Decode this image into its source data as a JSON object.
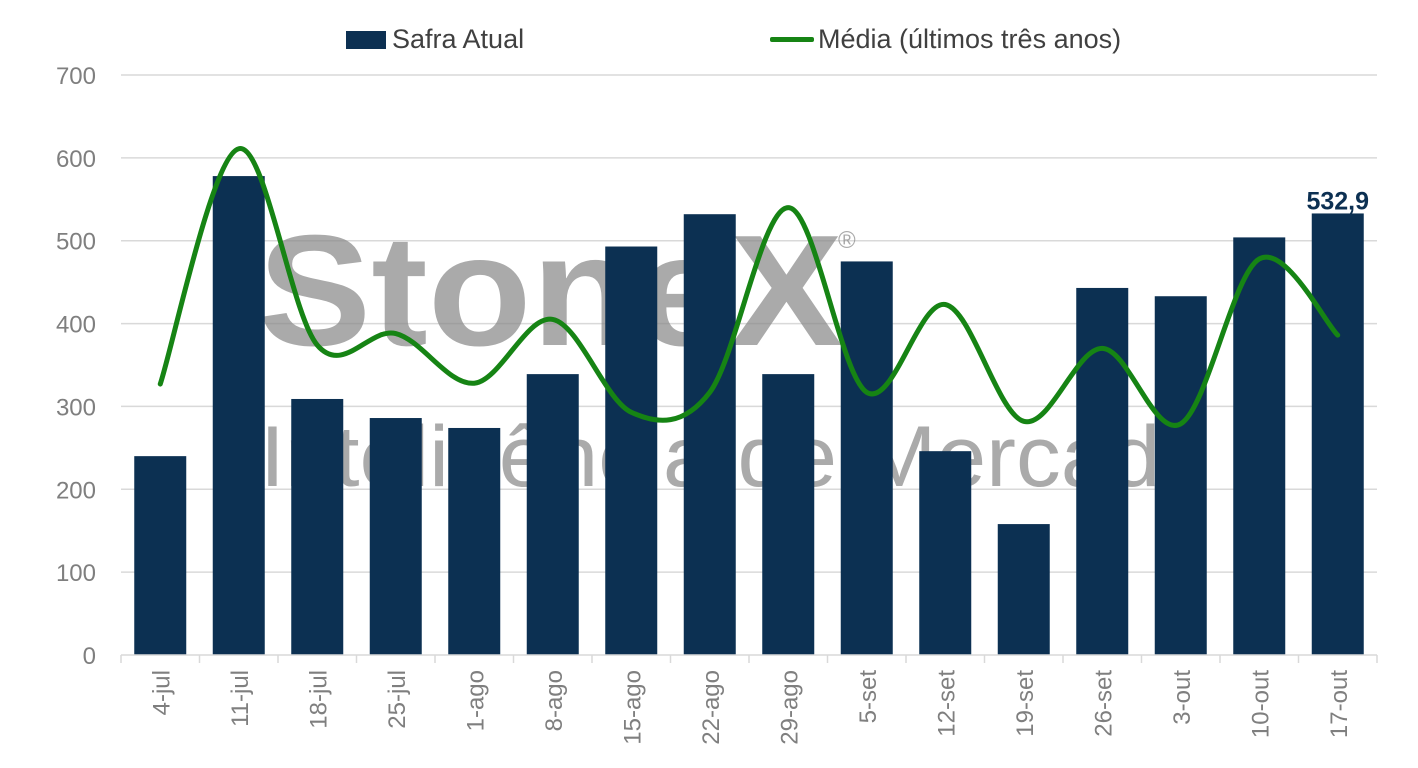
{
  "colors": {
    "bar": "#0c3052",
    "line": "#168414",
    "grid": "#d9d9d9",
    "axis_text": "#7f7f7f",
    "watermark": "#8a8a8a"
  },
  "legend": {
    "bar_label": "Safra Atual",
    "line_label": "Média (últimos três anos)"
  },
  "watermark": {
    "brand": "StoneX",
    "tagline": "Inteligência de Mercado",
    "registered_mark": "®"
  },
  "chart_data": {
    "type": "bar",
    "categories": [
      "4-jul",
      "11-jul",
      "18-jul",
      "25-jul",
      "1-ago",
      "8-ago",
      "15-ago",
      "22-ago",
      "29-ago",
      "5-set",
      "12-set",
      "19-set",
      "26-set",
      "3-out",
      "10-out",
      "17-out"
    ],
    "series": [
      {
        "name": "Safra Atual",
        "type": "bar",
        "values": [
          240,
          578,
          309,
          286,
          274,
          339,
          493,
          532,
          339,
          475,
          246,
          158,
          443,
          433,
          504,
          532.9
        ]
      },
      {
        "name": "Média (últimos três anos)",
        "type": "line",
        "smooth": true,
        "values": [
          327,
          611,
          374,
          388,
          328,
          405,
          293,
          317,
          540,
          317,
          423,
          282,
          370,
          279,
          478,
          386
        ]
      }
    ],
    "data_labels": [
      {
        "series": "Safra Atual",
        "category": "17-out",
        "text": "532,9"
      }
    ],
    "ylim": [
      0,
      700
    ],
    "yticks": [
      "0",
      "100",
      "200",
      "300",
      "400",
      "500",
      "600",
      "700"
    ],
    "grid": true,
    "legend_position": "top"
  }
}
